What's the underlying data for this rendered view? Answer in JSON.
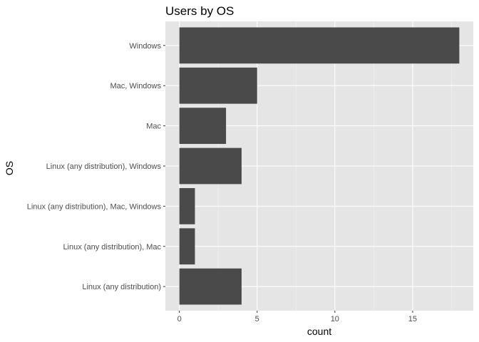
{
  "chart_data": {
    "type": "bar",
    "orientation": "horizontal",
    "title": "Users by OS",
    "xlabel": "count",
    "ylabel": "OS",
    "categories": [
      "Linux (any distribution)",
      "Linux (any distribution), Mac",
      "Linux (any distribution), Mac, Windows",
      "Linux (any distribution), Windows",
      "Mac",
      "Mac, Windows",
      "Windows"
    ],
    "values": [
      4,
      1,
      1,
      4,
      3,
      5,
      18
    ],
    "xlim": [
      -0.9,
      18.9
    ],
    "xticks": [
      0,
      5,
      10,
      15
    ],
    "xtick_labels": [
      "0",
      "5",
      "10",
      "15"
    ],
    "grid": true,
    "colors": {
      "bar": "#4a4a4a",
      "panel": "#e5e5e5",
      "grid_major": "#ffffff",
      "grid_minor": "#f2f2f2",
      "tick": "#333333"
    }
  }
}
